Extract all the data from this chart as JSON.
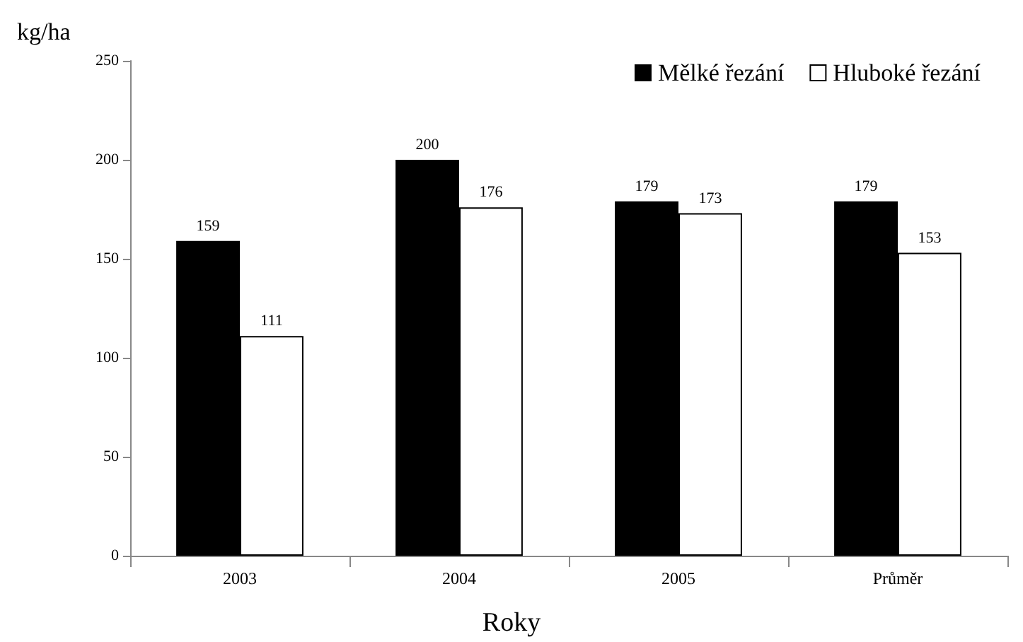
{
  "chart_data": {
    "type": "bar",
    "ylabel": "kg/ha",
    "xlabel": "Roky",
    "categories": [
      "2003",
      "2004",
      "2005",
      "Průměr"
    ],
    "series": [
      {
        "name": "Mělké řezání",
        "color": "#000000",
        "values": [
          159,
          200,
          179,
          179
        ]
      },
      {
        "name": "Hluboké řezání",
        "color": "#ffffff",
        "values": [
          111,
          176,
          173,
          153
        ]
      }
    ],
    "ylim": [
      0,
      250
    ],
    "yticks": [
      0,
      50,
      100,
      150,
      200,
      250
    ],
    "grid": false,
    "legend": "top right",
    "data_labels": true
  }
}
